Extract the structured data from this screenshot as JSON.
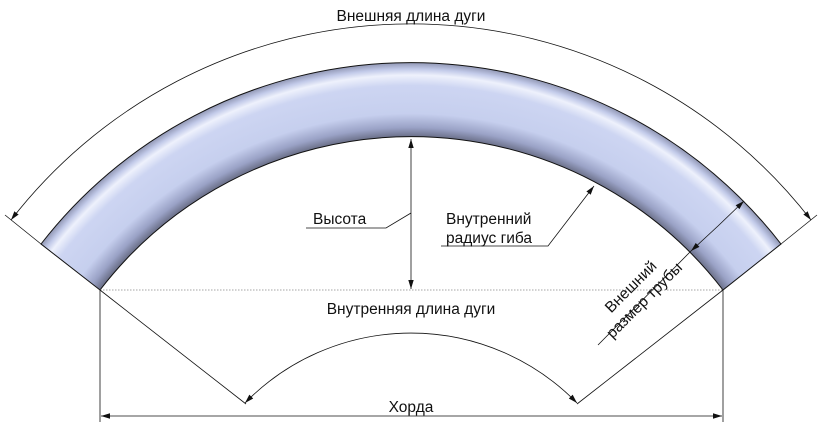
{
  "labels": {
    "outer_arc_length": "Внешняя длина дуги",
    "inner_arc_length": "Внутренняя длина дуги",
    "height": "Высота",
    "inner_bend_radius_line1": "Внутренний",
    "inner_bend_radius_line2": "радиус гиба",
    "outer_pipe_size_line1": "Внешний",
    "outer_pipe_size_line2": "размер трубы",
    "chord": "Хорда"
  },
  "colors": {
    "pipe_fill": "#c8d0ee",
    "pipe_shadow": "#6a6f88",
    "line": "#111111"
  }
}
